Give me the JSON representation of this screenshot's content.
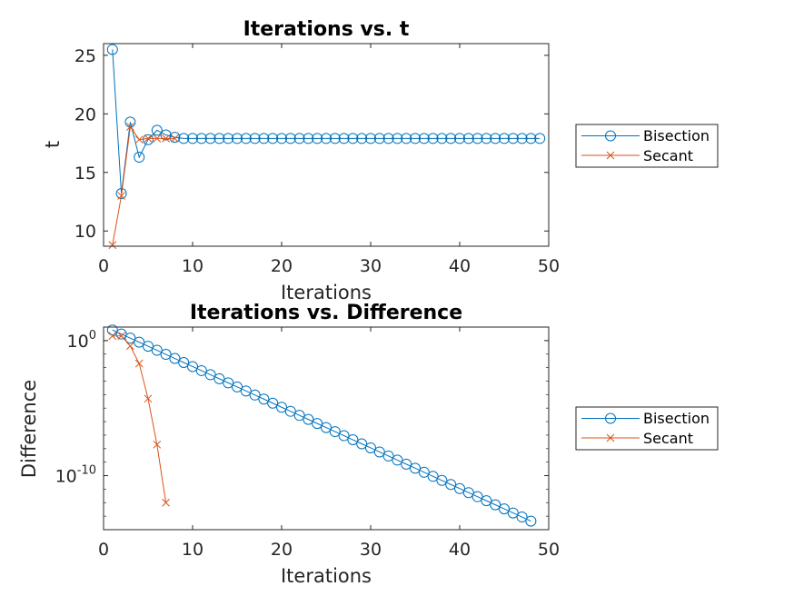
{
  "chart_data": [
    {
      "type": "line",
      "title": "Iterations vs. t",
      "xlabel": "Iterations",
      "ylabel": "t",
      "xlim": [
        0,
        50
      ],
      "ylim": [
        8.7,
        26
      ],
      "xticks": [
        0,
        10,
        20,
        30,
        40,
        50
      ],
      "yticks": [
        10,
        15,
        20,
        25
      ],
      "yscale": "linear",
      "grid": false,
      "legend_position": "outside-right",
      "series": [
        {
          "name": "Bisection",
          "color": "#0072BD",
          "marker": "circle",
          "x": [
            1,
            2,
            3,
            4,
            5,
            6,
            7,
            8,
            9,
            10,
            11,
            12,
            13,
            14,
            15,
            16,
            17,
            18,
            19,
            20,
            21,
            22,
            23,
            24,
            25,
            26,
            27,
            28,
            29,
            30,
            31,
            32,
            33,
            34,
            35,
            36,
            37,
            38,
            39,
            40,
            41,
            42,
            43,
            44,
            45,
            46,
            47,
            48,
            49
          ],
          "y": [
            25.5,
            13.2,
            19.3,
            16.3,
            17.8,
            18.6,
            18.2,
            18.0,
            17.9,
            17.9,
            17.9,
            17.9,
            17.9,
            17.9,
            17.9,
            17.9,
            17.9,
            17.9,
            17.9,
            17.9,
            17.9,
            17.9,
            17.9,
            17.9,
            17.9,
            17.9,
            17.9,
            17.9,
            17.9,
            17.9,
            17.9,
            17.9,
            17.9,
            17.9,
            17.9,
            17.9,
            17.9,
            17.9,
            17.9,
            17.9,
            17.9,
            17.9,
            17.9,
            17.9,
            17.9,
            17.9,
            17.9,
            17.9,
            17.9
          ]
        },
        {
          "name": "Secant",
          "color": "#D95319",
          "marker": "x",
          "x": [
            1,
            2,
            3,
            4,
            5,
            6,
            7,
            8
          ],
          "y": [
            8.8,
            13.0,
            18.9,
            17.8,
            17.9,
            17.9,
            17.9,
            17.9
          ]
        }
      ]
    },
    {
      "type": "line",
      "title": "Iterations vs. Difference",
      "xlabel": "Iterations",
      "ylabel": "Difference",
      "xlim": [
        0,
        50
      ],
      "ylim": [
        1e-14,
        10.0
      ],
      "xticks": [
        0,
        10,
        20,
        30,
        40,
        50
      ],
      "yticks": [
        1e-10,
        1
      ],
      "ytick_labels": [
        {
          "base": "10",
          "exp": "-10"
        },
        {
          "base": "10",
          "exp": "0"
        }
      ],
      "yscale": "log",
      "grid": false,
      "legend_position": "outside-right",
      "series": [
        {
          "name": "Bisection",
          "color": "#0072BD",
          "marker": "circle",
          "x": [
            1,
            2,
            3,
            4,
            5,
            6,
            7,
            8,
            9,
            10,
            11,
            12,
            13,
            14,
            15,
            16,
            17,
            18,
            19,
            20,
            21,
            22,
            23,
            24,
            25,
            26,
            27,
            28,
            29,
            30,
            31,
            32,
            33,
            34,
            35,
            36,
            37,
            38,
            39,
            40,
            41,
            42,
            43,
            44,
            45,
            46,
            47,
            48
          ],
          "y": [
            6.1,
            3.05,
            1.52,
            0.762,
            0.381,
            0.191,
            0.0953,
            0.0476,
            0.0238,
            0.0119,
            0.00596,
            0.00298,
            0.00149,
            0.000745,
            0.000372,
            0.000186,
            9.31e-05,
            4.66e-05,
            2.33e-05,
            1.16e-05,
            5.82e-06,
            2.91e-06,
            1.46e-06,
            7.28e-07,
            3.64e-07,
            1.82e-07,
            9.09e-08,
            4.55e-08,
            2.27e-08,
            1.14e-08,
            5.68e-09,
            2.84e-09,
            1.42e-09,
            7.1e-10,
            3.55e-10,
            1.78e-10,
            8.88e-11,
            4.44e-11,
            2.22e-11,
            1.11e-11,
            5.55e-12,
            2.78e-12,
            1.39e-12,
            6.94e-13,
            3.47e-13,
            1.73e-13,
            8.67e-14,
            4.3e-14
          ]
        },
        {
          "name": "Secant",
          "color": "#D95319",
          "marker": "x",
          "x": [
            1,
            2,
            3,
            4,
            5,
            6,
            7
          ],
          "y": [
            2.2,
            2.2,
            0.4,
            0.02,
            5e-05,
            2e-08,
            1e-12
          ]
        }
      ]
    }
  ]
}
